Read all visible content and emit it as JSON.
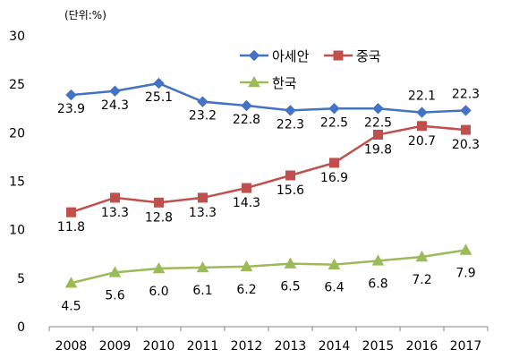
{
  "unit_note": "(단위:%)",
  "chart_data": {
    "type": "line",
    "x": [
      "2008",
      "2009",
      "2010",
      "2011",
      "2012",
      "2013",
      "2014",
      "2015",
      "2016",
      "2017"
    ],
    "ylim": [
      0,
      30
    ],
    "yticks": [
      0,
      5,
      10,
      15,
      20,
      25,
      30
    ],
    "grid": false,
    "legend_position": "top-right",
    "series": [
      {
        "name": "아세안",
        "color": "#4472C4",
        "marker": "diamond",
        "values": [
          23.9,
          24.3,
          25.1,
          23.2,
          22.8,
          22.3,
          22.5,
          22.5,
          22.1,
          22.3
        ]
      },
      {
        "name": "중국",
        "color": "#C0504D",
        "marker": "square",
        "values": [
          11.8,
          13.3,
          12.8,
          13.3,
          14.3,
          15.6,
          16.9,
          19.8,
          20.7,
          20.3
        ]
      },
      {
        "name": "한국",
        "color": "#9BBB59",
        "marker": "triangle",
        "values": [
          4.5,
          5.6,
          6.0,
          6.1,
          6.2,
          6.5,
          6.4,
          6.8,
          7.2,
          7.9
        ]
      }
    ]
  }
}
